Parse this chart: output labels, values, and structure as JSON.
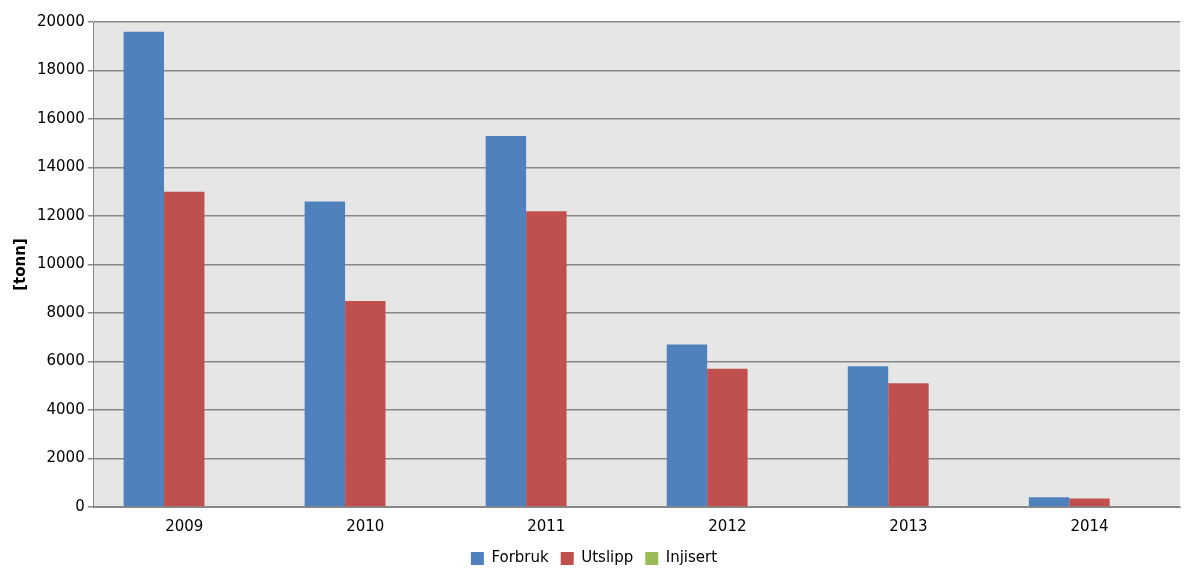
{
  "chart_data": {
    "type": "bar",
    "ylabel": "[tonn]",
    "categories": [
      "2009",
      "2010",
      "2011",
      "2012",
      "2013",
      "2014"
    ],
    "series": [
      {
        "name": "Forbruk",
        "color": "#4f81bd",
        "values": [
          19600,
          12600,
          15300,
          6700,
          5800,
          400
        ]
      },
      {
        "name": "Utslipp",
        "color": "#c0504d",
        "values": [
          13000,
          8500,
          12200,
          5700,
          5100,
          350
        ]
      },
      {
        "name": "Injisert",
        "color": "#9bbb59",
        "values": [
          30,
          30,
          0,
          0,
          0,
          0
        ]
      }
    ],
    "ylim": [
      0,
      20000
    ],
    "yticks": [
      0,
      2000,
      4000,
      6000,
      8000,
      10000,
      12000,
      14000,
      16000,
      18000,
      20000
    ],
    "grid": "y",
    "legend": "bottom"
  }
}
